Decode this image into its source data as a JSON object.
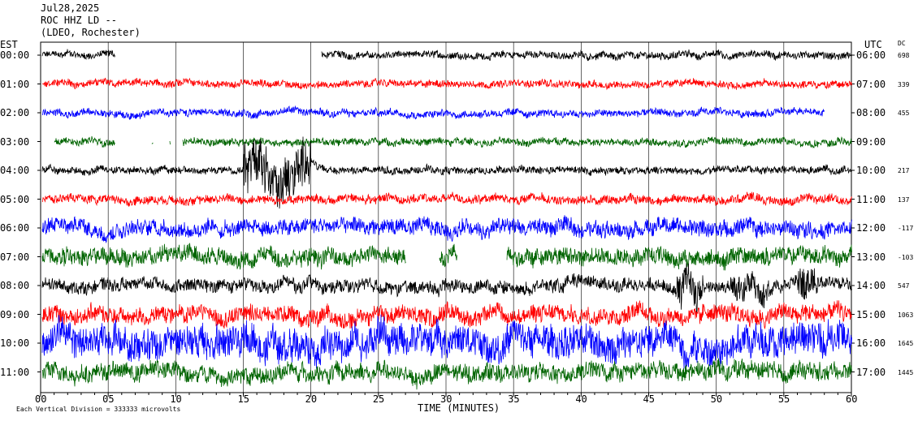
{
  "header": {
    "date": "Jul28,2025",
    "station": "ROC HHZ LD --",
    "network": "(LDEO, Rochester)"
  },
  "left_axis_title": "EST",
  "right_axis_title": "UTC",
  "dc_title": "DC",
  "x_axis_title": "TIME (MINUTES)",
  "footer_note": "Each Vertical Division = 333333 microvolts",
  "colors": {
    "black": "#000000",
    "red": "#ff0000",
    "blue": "#0000ff",
    "green": "#006400"
  },
  "chart_data": {
    "type": "line",
    "title": "Jul28,2025 ROC HHZ LD -- (LDEO, Rochester)",
    "xlabel": "TIME (MINUTES)",
    "xlim": [
      0,
      60
    ],
    "x_ticks": [
      "00",
      "05",
      "10",
      "15",
      "20",
      "25",
      "30",
      "35",
      "40",
      "45",
      "50",
      "55",
      "60"
    ],
    "rows": [
      {
        "est": "00:00",
        "utc": "06:00",
        "dc": "698",
        "color": "black",
        "amplitude": 0.25,
        "gaps": [
          [
            5.5,
            20.8
          ]
        ],
        "bursts": []
      },
      {
        "est": "01:00",
        "utc": "07:00",
        "dc": "339",
        "color": "red",
        "amplitude": 0.25,
        "gaps": [],
        "bursts": []
      },
      {
        "est": "02:00",
        "utc": "08:00",
        "dc": "455",
        "color": "blue",
        "amplitude": 0.25,
        "gaps": [
          [
            58,
            60
          ]
        ],
        "bursts": []
      },
      {
        "est": "03:00",
        "utc": "09:00",
        "dc": "",
        "color": "green",
        "amplitude": 0.25,
        "gaps": [
          [
            0,
            1
          ],
          [
            5.5,
            8.2
          ],
          [
            8.3,
            9.5
          ],
          [
            9.6,
            10.5
          ]
        ],
        "bursts": []
      },
      {
        "est": "04:00",
        "utc": "10:00",
        "dc": "217",
        "color": "black",
        "amplitude": 0.25,
        "gaps": [],
        "bursts": [
          [
            15,
            20,
            1.8
          ]
        ]
      },
      {
        "est": "05:00",
        "utc": "11:00",
        "dc": "137",
        "color": "red",
        "amplitude": 0.3,
        "gaps": [],
        "bursts": []
      },
      {
        "est": "06:00",
        "utc": "12:00",
        "dc": "-117",
        "color": "blue",
        "amplitude": 0.55,
        "gaps": [],
        "bursts": []
      },
      {
        "est": "07:00",
        "utc": "13:00",
        "dc": "-103",
        "color": "green",
        "amplitude": 0.6,
        "gaps": [
          [
            27,
            29.5
          ],
          [
            30.8,
            34.5
          ]
        ],
        "bursts": []
      },
      {
        "est": "08:00",
        "utc": "14:00",
        "dc": "547",
        "color": "black",
        "amplitude": 0.45,
        "gaps": [],
        "bursts": [
          [
            47,
            49,
            1.2
          ],
          [
            51,
            54,
            1.0
          ],
          [
            56,
            57.5,
            1.2
          ]
        ]
      },
      {
        "est": "09:00",
        "utc": "15:00",
        "dc": "1063",
        "color": "red",
        "amplitude": 0.6,
        "gaps": [],
        "bursts": []
      },
      {
        "est": "10:00",
        "utc": "16:00",
        "dc": "1645",
        "color": "blue",
        "amplitude": 1.1,
        "gaps": [],
        "bursts": []
      },
      {
        "est": "11:00",
        "utc": "17:00",
        "dc": "1445",
        "color": "green",
        "amplitude": 0.6,
        "gaps": [],
        "bursts": []
      }
    ]
  }
}
